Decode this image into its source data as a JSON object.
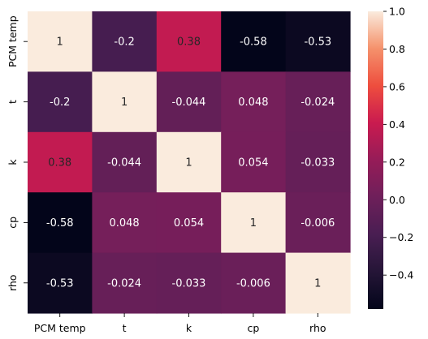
{
  "chart_data": {
    "type": "heatmap",
    "title": "",
    "xlabel": "",
    "ylabel": "",
    "x_labels": [
      "PCM temp",
      "t",
      "k",
      "cp",
      "rho"
    ],
    "y_labels": [
      "PCM temp",
      "t",
      "k",
      "cp",
      "rho"
    ],
    "values": [
      [
        1,
        -0.2,
        0.38,
        -0.58,
        -0.53
      ],
      [
        -0.2,
        1,
        -0.044,
        0.048,
        -0.024
      ],
      [
        0.38,
        -0.044,
        1,
        0.054,
        -0.033
      ],
      [
        -0.58,
        0.048,
        0.054,
        1,
        -0.006
      ],
      [
        -0.53,
        -0.024,
        -0.033,
        -0.006,
        1
      ]
    ],
    "value_labels": [
      [
        "1",
        "-0.2",
        "0.38",
        "-0.58",
        "-0.53"
      ],
      [
        "-0.2",
        "1",
        "-0.044",
        "0.048",
        "-0.024"
      ],
      [
        "0.38",
        "-0.044",
        "1",
        "0.054",
        "-0.033"
      ],
      [
        "-0.58",
        "0.048",
        "0.054",
        "1",
        "-0.006"
      ],
      [
        "-0.53",
        "-0.024",
        "-0.033",
        "-0.006",
        "1"
      ]
    ],
    "colormap": "rocket",
    "vmin": -0.58,
    "vmax": 1.0,
    "colorbar": {
      "ticks": [
        -0.4,
        -0.2,
        0.0,
        0.2,
        0.4,
        0.6,
        0.8,
        1.0
      ],
      "tick_labels": [
        "−0.4",
        "−0.2",
        "0.0",
        "0.2",
        "0.4",
        "0.6",
        "0.8",
        "1.0"
      ]
    },
    "grid": false,
    "legend": "colorbar-right"
  }
}
